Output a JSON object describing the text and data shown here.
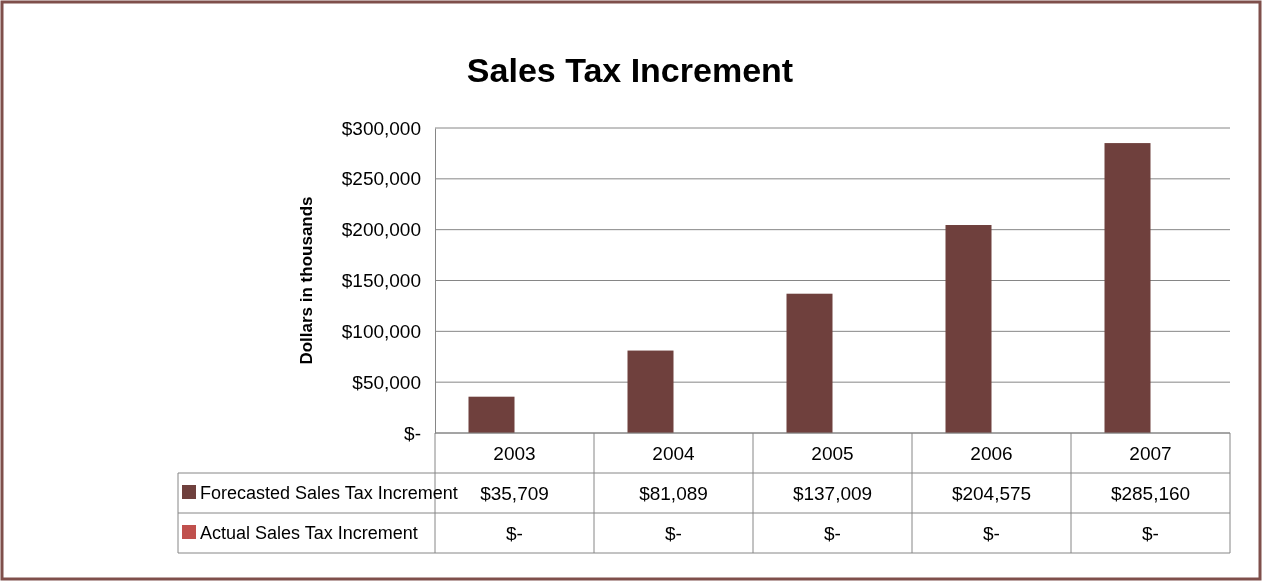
{
  "chart_data": {
    "type": "bar",
    "title": "Sales Tax Increment",
    "ylabel": "Dollars in thousands",
    "categories": [
      "2003",
      "2004",
      "2005",
      "2006",
      "2007"
    ],
    "series": [
      {
        "name": "Forecasted Sales Tax Increment",
        "color": "#6f403d",
        "values": [
          35709,
          81089,
          137009,
          204575,
          285160
        ],
        "value_labels": [
          "$35,709",
          "$81,089",
          "$137,009",
          "$204,575",
          "$285,160"
        ]
      },
      {
        "name": "Actual Sales Tax Increment",
        "color": "#c0504d",
        "values": [
          0,
          0,
          0,
          0,
          0
        ],
        "value_labels": [
          "$-",
          "$-",
          "$-",
          "$-",
          "$-"
        ]
      }
    ],
    "ylim": [
      0,
      300000
    ],
    "yticks": [
      {
        "value": 0,
        "label": "$-"
      },
      {
        "value": 50000,
        "label": "$50,000"
      },
      {
        "value": 100000,
        "label": "$100,000"
      },
      {
        "value": 150000,
        "label": "$150,000"
      },
      {
        "value": 200000,
        "label": "$200,000"
      },
      {
        "value": 250000,
        "label": "$250,000"
      },
      {
        "value": 300000,
        "label": "$300,000"
      }
    ],
    "grid": "y",
    "legend": "bottom"
  }
}
